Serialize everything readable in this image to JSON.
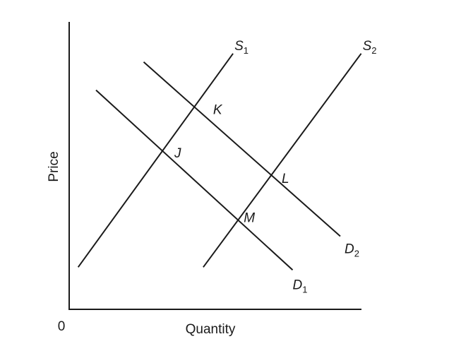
{
  "chart_data": {
    "type": "line",
    "title": "",
    "xlabel": "Quantity",
    "ylabel": "Price",
    "origin_label": "0",
    "grid": false,
    "legend": "none",
    "xlim": [
      0,
      10
    ],
    "ylim": [
      0,
      10
    ],
    "series": [
      {
        "name": "S1",
        "label_main": "S",
        "label_sub": "1",
        "x": [
          0.3,
          5.5
        ],
        "y": [
          1.5,
          9.1
        ]
      },
      {
        "name": "S2",
        "label_main": "S",
        "label_sub": "2",
        "x": [
          4.5,
          9.8
        ],
        "y": [
          1.5,
          9.1
        ]
      },
      {
        "name": "D1",
        "label_main": "D",
        "label_sub": "1",
        "x": [
          0.9,
          7.5
        ],
        "y": [
          7.8,
          1.4
        ]
      },
      {
        "name": "D2",
        "label_main": "D",
        "label_sub": "2",
        "x": [
          2.5,
          9.1
        ],
        "y": [
          8.8,
          2.6
        ]
      }
    ],
    "points": [
      {
        "label": "J",
        "x": 3.2,
        "y": 5.4
      },
      {
        "label": "K",
        "x": 4.5,
        "y": 7.0
      },
      {
        "label": "L",
        "x": 6.8,
        "y": 4.6
      },
      {
        "label": "M",
        "x": 5.6,
        "y": 3.1
      }
    ]
  }
}
